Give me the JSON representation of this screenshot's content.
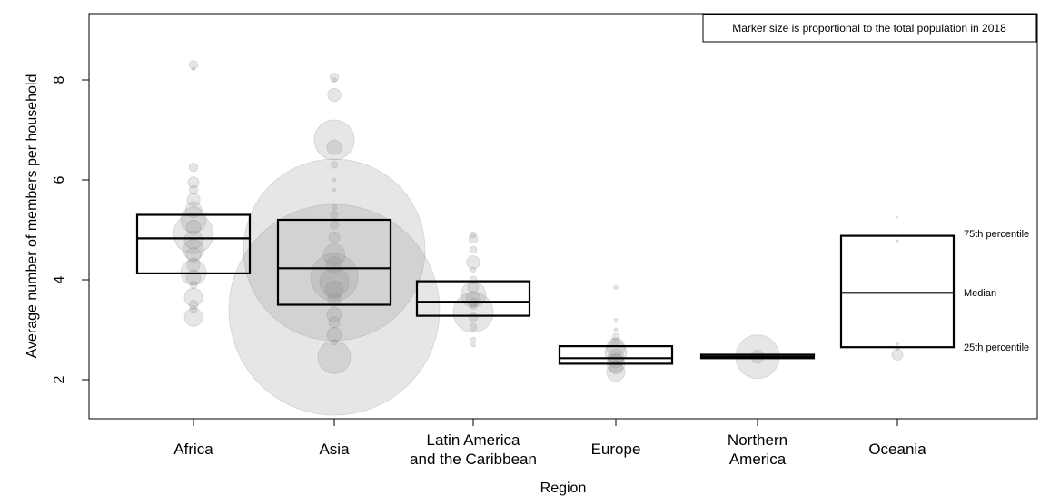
{
  "chart_data": {
    "type": "scatter",
    "title": "",
    "xlabel": "Region",
    "ylabel": "Average number of members per household",
    "ylim": [
      1.3,
      9.4
    ],
    "yticks": [
      2,
      4,
      6,
      8
    ],
    "grid": false,
    "note": "Marker size is proportional to the total population in 2018",
    "box_legend": {
      "q3": "75th percentile",
      "median": "Median",
      "q1": "25th percentile"
    },
    "categories": [
      "Africa",
      "Asia",
      "Latin America\nand the Caribbean",
      "Europe",
      "Northern\nAmerica",
      "Oceania"
    ],
    "boxes": [
      {
        "q1": 4.13,
        "median": 4.83,
        "q3": 5.3
      },
      {
        "q1": 3.5,
        "median": 4.23,
        "q3": 5.2
      },
      {
        "q1": 3.28,
        "median": 3.56,
        "q3": 3.97
      },
      {
        "q1": 2.32,
        "median": 2.43,
        "q3": 2.67
      },
      {
        "q1": 2.43,
        "median": 2.46,
        "q3": 2.5
      },
      {
        "q1": 2.65,
        "median": 3.74,
        "q3": 4.88
      }
    ],
    "points": [
      [
        {
          "y": 8.3,
          "s": 1.2
        },
        {
          "y": 8.22,
          "s": 0.4
        },
        {
          "y": 6.25,
          "s": 1.2
        },
        {
          "y": 5.95,
          "s": 1.5
        },
        {
          "y": 5.8,
          "s": 1.2
        },
        {
          "y": 5.6,
          "s": 1.8
        },
        {
          "y": 5.4,
          "s": 2.2
        },
        {
          "y": 5.2,
          "s": 3.5
        },
        {
          "y": 5.05,
          "s": 2.0
        },
        {
          "y": 4.92,
          "s": 5.5
        },
        {
          "y": 4.8,
          "s": 2.5
        },
        {
          "y": 4.6,
          "s": 2.8
        },
        {
          "y": 4.5,
          "s": 2.0
        },
        {
          "y": 4.3,
          "s": 1.8
        },
        {
          "y": 4.15,
          "s": 3.5
        },
        {
          "y": 4.05,
          "s": 2.0
        },
        {
          "y": 3.9,
          "s": 1.0
        },
        {
          "y": 3.65,
          "s": 2.5
        },
        {
          "y": 3.5,
          "s": 1.2
        },
        {
          "y": 3.4,
          "s": 1.0
        },
        {
          "y": 3.25,
          "s": 2.5
        }
      ],
      [
        {
          "y": 8.05,
          "s": 1.2
        },
        {
          "y": 8.0,
          "s": 0.6
        },
        {
          "y": 7.7,
          "s": 1.8
        },
        {
          "y": 6.8,
          "s": 5.5
        },
        {
          "y": 6.65,
          "s": 2.0
        },
        {
          "y": 6.3,
          "s": 0.9
        },
        {
          "y": 6.0,
          "s": 0.5
        },
        {
          "y": 5.8,
          "s": 0.4
        },
        {
          "y": 5.45,
          "s": 0.7
        },
        {
          "y": 5.3,
          "s": 1.0
        },
        {
          "y": 5.1,
          "s": 1.2
        },
        {
          "y": 4.85,
          "s": 1.5
        },
        {
          "y": 4.6,
          "s": 25
        },
        {
          "y": 4.5,
          "s": 3.0
        },
        {
          "y": 4.3,
          "s": 2.2
        },
        {
          "y": 4.05,
          "s": 6.5
        },
        {
          "y": 3.95,
          "s": 4.0
        },
        {
          "y": 3.8,
          "s": 2.5
        },
        {
          "y": 3.6,
          "s": 1.8
        },
        {
          "y": 3.4,
          "s": 29
        },
        {
          "y": 3.3,
          "s": 2.0
        },
        {
          "y": 3.15,
          "s": 1.5
        },
        {
          "y": 2.9,
          "s": 2.0
        },
        {
          "y": 2.75,
          "s": 0.8
        },
        {
          "y": 2.45,
          "s": 4.5
        }
      ],
      [
        {
          "y": 4.9,
          "s": 0.8
        },
        {
          "y": 4.82,
          "s": 1.2
        },
        {
          "y": 4.6,
          "s": 1.0
        },
        {
          "y": 4.35,
          "s": 1.8
        },
        {
          "y": 4.2,
          "s": 0.7
        },
        {
          "y": 4.0,
          "s": 1.0
        },
        {
          "y": 3.85,
          "s": 1.5
        },
        {
          "y": 3.7,
          "s": 3.5
        },
        {
          "y": 3.62,
          "s": 2.0
        },
        {
          "y": 3.55,
          "s": 1.2
        },
        {
          "y": 3.48,
          "s": 1.0
        },
        {
          "y": 3.35,
          "s": 5.5
        },
        {
          "y": 3.25,
          "s": 1.2
        },
        {
          "y": 3.05,
          "s": 1.0
        },
        {
          "y": 2.8,
          "s": 0.7
        },
        {
          "y": 2.7,
          "s": 0.6
        }
      ],
      [
        {
          "y": 3.85,
          "s": 0.6
        },
        {
          "y": 3.2,
          "s": 0.4
        },
        {
          "y": 3.0,
          "s": 0.5
        },
        {
          "y": 2.85,
          "s": 1.0
        },
        {
          "y": 2.75,
          "s": 1.2
        },
        {
          "y": 2.65,
          "s": 2.5
        },
        {
          "y": 2.55,
          "s": 3.0
        },
        {
          "y": 2.45,
          "s": 2.2
        },
        {
          "y": 2.38,
          "s": 2.0
        },
        {
          "y": 2.32,
          "s": 2.5
        },
        {
          "y": 2.25,
          "s": 1.8
        },
        {
          "y": 2.15,
          "s": 2.5
        }
      ],
      [
        {
          "y": 2.46,
          "s": 6.0
        },
        {
          "y": 2.46,
          "s": 1.8
        }
      ],
      [
        {
          "y": 5.25,
          "s": 0.2
        },
        {
          "y": 4.78,
          "s": 0.3
        },
        {
          "y": 2.72,
          "s": 0.4
        },
        {
          "y": 2.62,
          "s": 0.4
        },
        {
          "y": 2.5,
          "s": 1.5
        }
      ]
    ]
  }
}
